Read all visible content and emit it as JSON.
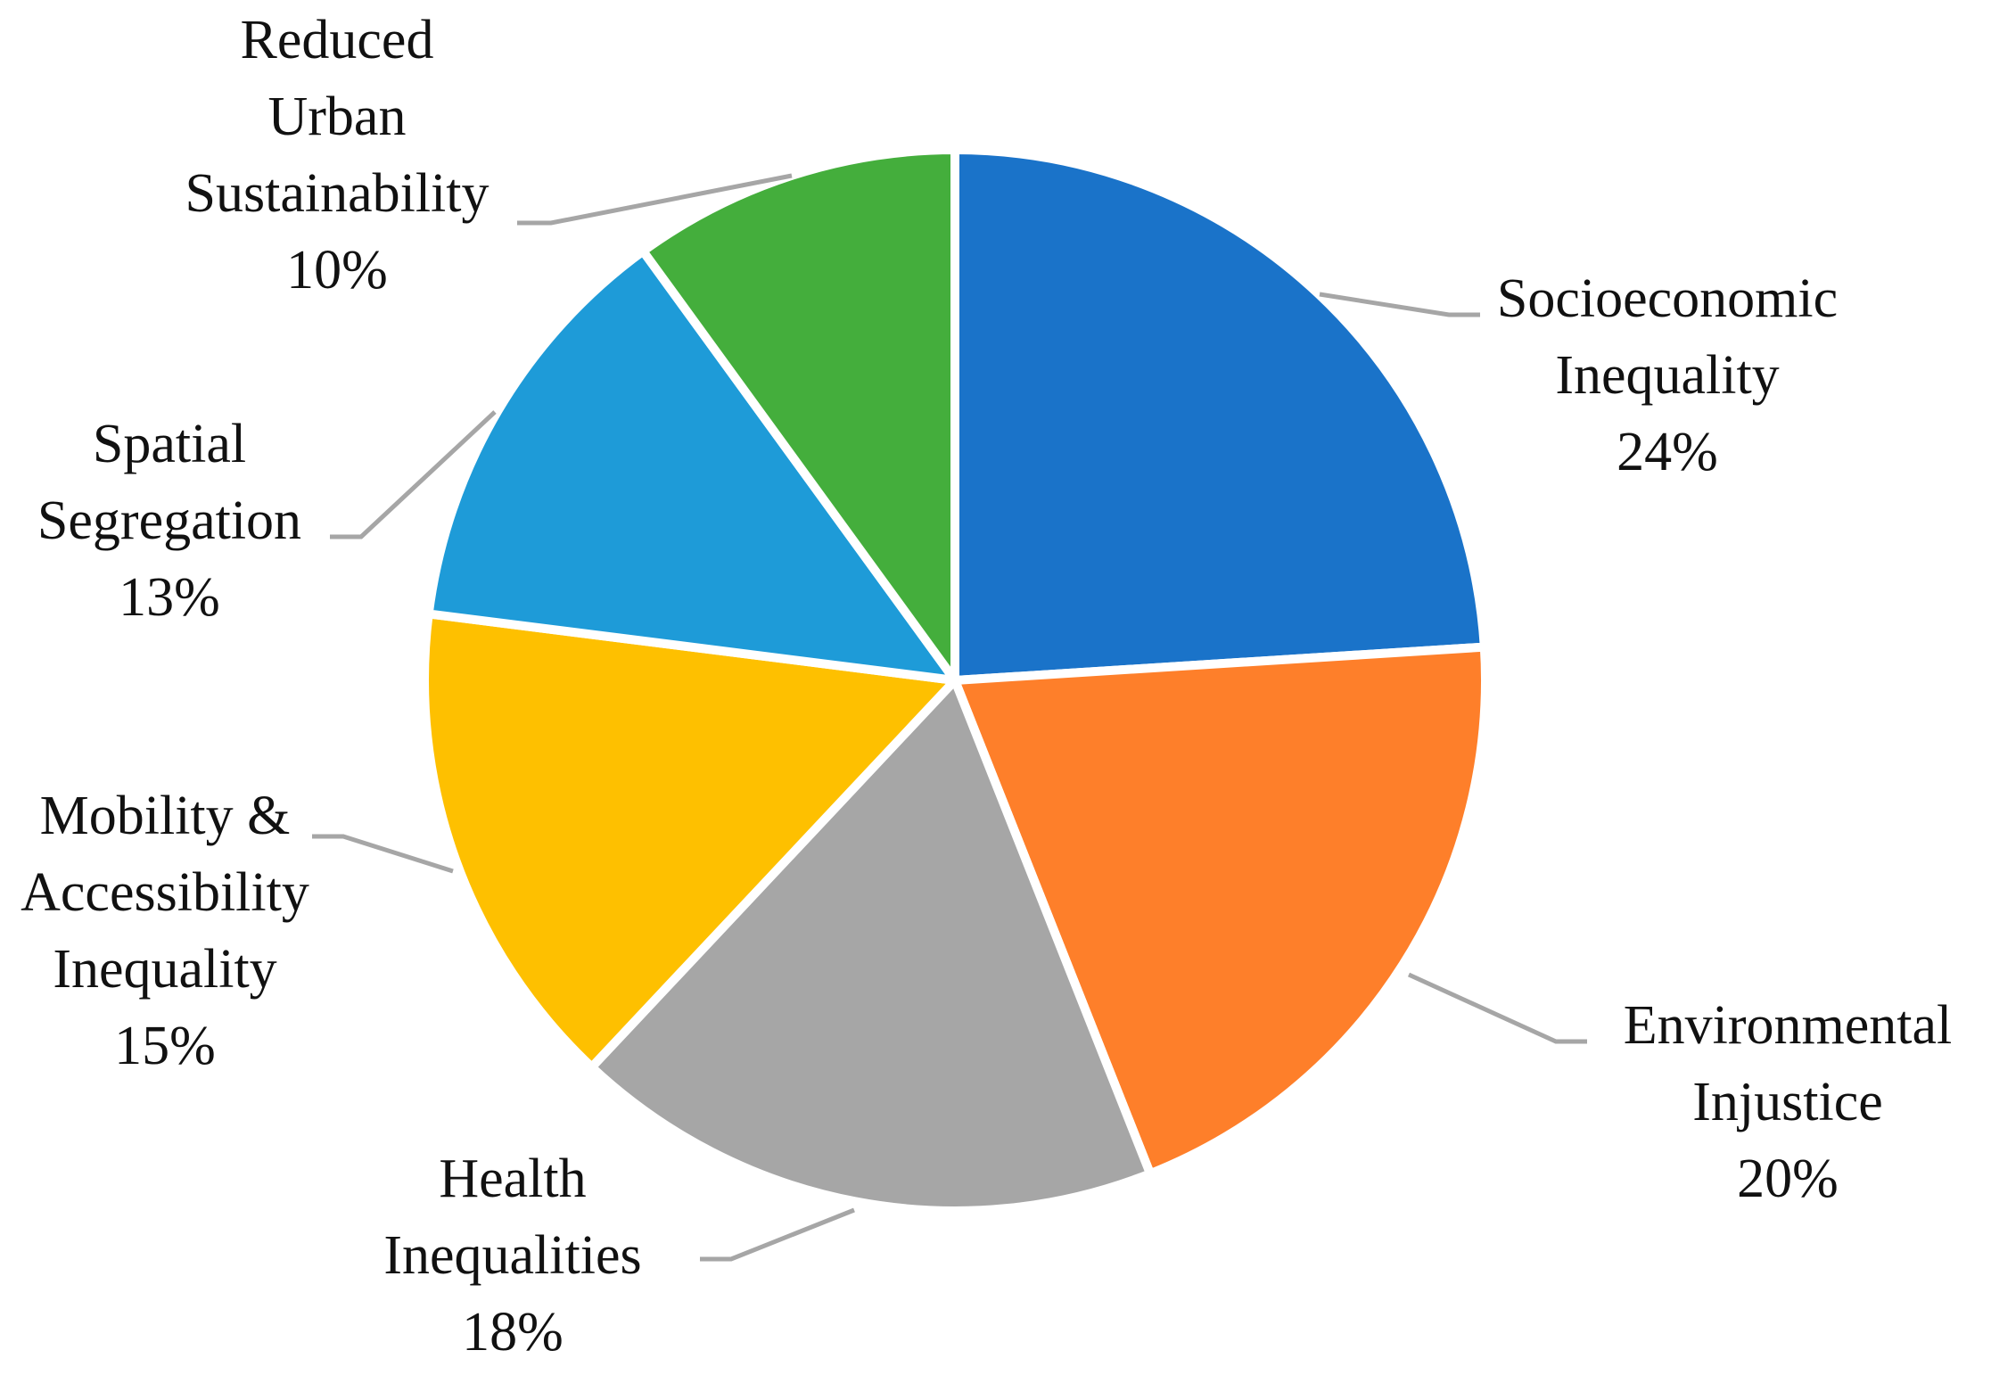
{
  "chart_data": {
    "type": "pie",
    "title": "",
    "start_angle_deg": 0,
    "direction": "clockwise",
    "legend": "none",
    "slices": [
      {
        "name": "Socioeconomic Inequality",
        "label_lines": [
          "Socioeconomic",
          "Inequality"
        ],
        "percent_label": "24%",
        "value": 24,
        "color": "#1a73c9"
      },
      {
        "name": "Environmental Injustice",
        "label_lines": [
          "Environmental",
          "Injustice"
        ],
        "percent_label": "20%",
        "value": 20,
        "color": "#fe7f2a"
      },
      {
        "name": "Health Inequalities",
        "label_lines": [
          "Health",
          "Inequalities"
        ],
        "percent_label": "18%",
        "value": 18,
        "color": "#a6a6a6"
      },
      {
        "name": "Mobility & Accessibility Inequality",
        "label_lines": [
          "Mobility &",
          "Accessibility",
          "Inequality"
        ],
        "percent_label": "15%",
        "value": 15,
        "color": "#fec000"
      },
      {
        "name": "Spatial Segregation",
        "label_lines": [
          "Spatial",
          "Segregation"
        ],
        "percent_label": "13%",
        "value": 13,
        "color": "#1e9bd8"
      },
      {
        "name": "Reduced Urban Sustainability",
        "label_lines": [
          "Reduced",
          "Urban",
          "Sustainability"
        ],
        "percent_label": "10%",
        "value": 10,
        "color": "#44ae3c"
      }
    ]
  }
}
